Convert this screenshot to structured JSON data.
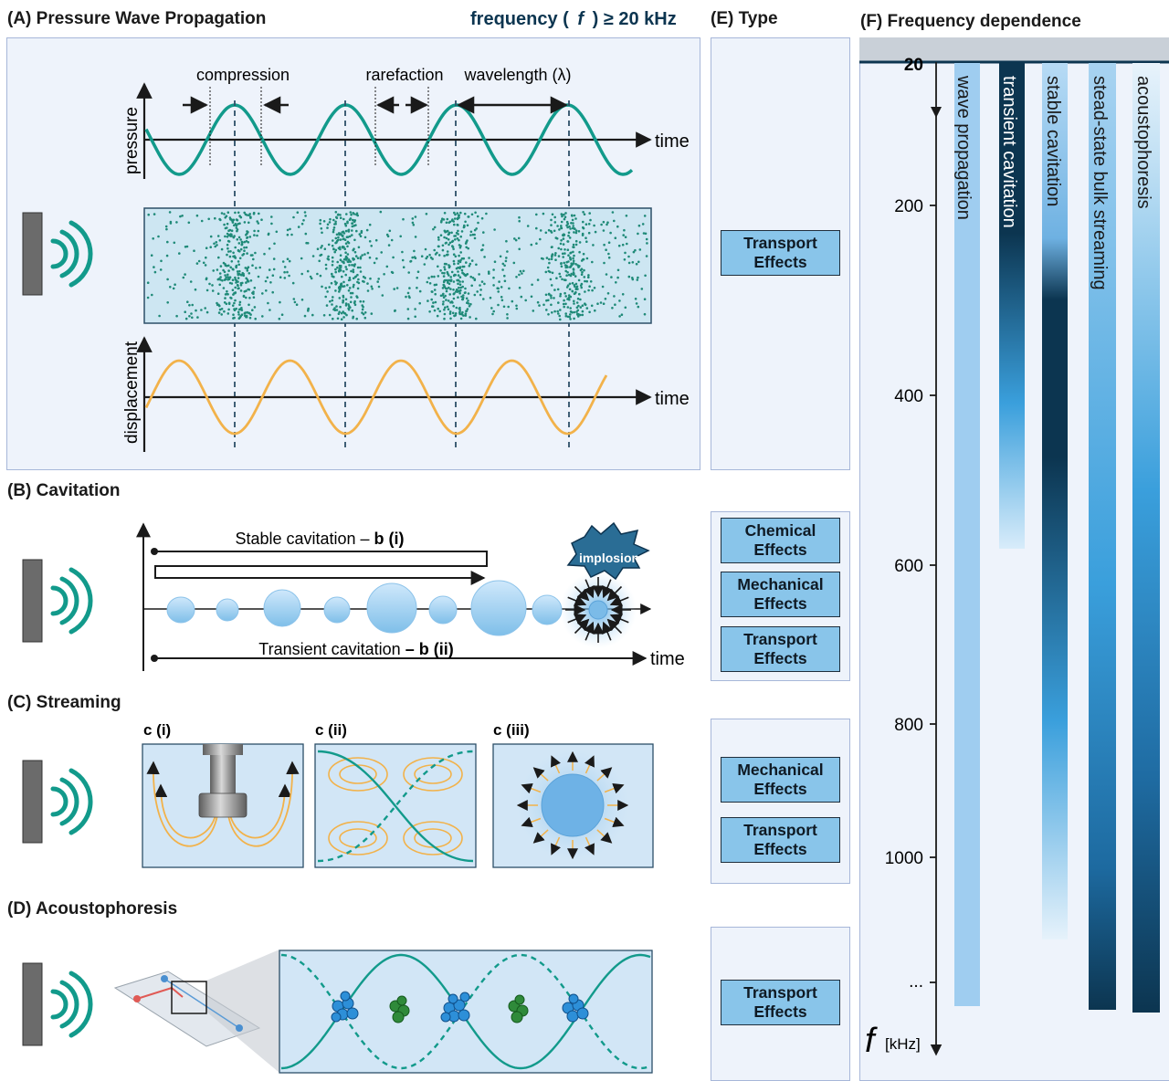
{
  "panels": {
    "a": {
      "title": "(A) Pressure Wave Propagation",
      "frequency_prefix": "frequency (",
      "frequency_symbol": "f",
      "frequency_suffix": ") ≥ 20 kHz",
      "compression": "compression",
      "rarefaction": "rarefaction",
      "wavelength": "wavelength (λ)",
      "pressure": "pressure",
      "displacement": "displacement",
      "time": "time"
    },
    "b": {
      "title": "(B) Cavitation",
      "stable_text": "Stable cavitation – ",
      "stable_bold": "b (i)",
      "transient_text": "Transient cavitation ",
      "transient_bold": "– b (ii)",
      "implosion": "implosion",
      "time": "time"
    },
    "c": {
      "title": "(C) Streaming",
      "sub1": "c (i)",
      "sub2": "c (ii)",
      "sub3": "c (iii)"
    },
    "d": {
      "title": "(D) Acoustophoresis"
    },
    "e": {
      "title": "(E) Type",
      "a_effects": [
        "Transport Effects"
      ],
      "b_effects": [
        "Chemical Effects",
        "Mechanical Effects",
        "Transport Effects"
      ],
      "c_effects": [
        "Mechanical Effects",
        "Transport Effects"
      ],
      "d_effects": [
        "Transport Effects"
      ]
    },
    "f": {
      "title": "(F) Frequency dependence",
      "axis_ticks": [
        "20",
        "200",
        "400",
        "600",
        "800",
        "1000",
        "..."
      ],
      "axis_symbol": "f",
      "axis_unit": "[kHz]",
      "bars": [
        "wave propagation",
        "transient cavitation",
        "stable cavitation",
        "stead-state bulk streaming",
        "acoustophoresis"
      ]
    }
  },
  "colors": {
    "teal": "#129a8b",
    "orange": "#f2b24a",
    "panel_bg": "#eef3fb",
    "panel_border": "#a7b7d9",
    "effect_fill": "#89c5ea",
    "navy": "#0c3550",
    "blue": "#3a9fdc",
    "light_blue": "#a8d3f1"
  }
}
